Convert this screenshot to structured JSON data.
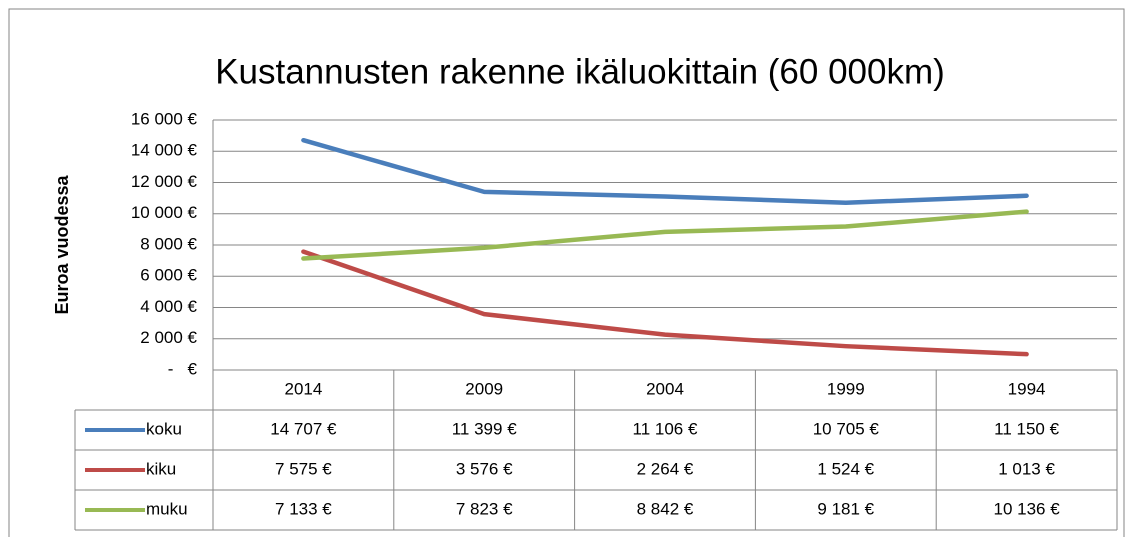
{
  "chart_data": {
    "type": "line",
    "title": "Kustannusten rakenne ikäluokittain (60 000km)",
    "y_label": "Euroa vuodessa",
    "categories": [
      "2014",
      "2009",
      "2004",
      "1999",
      "1994"
    ],
    "series": [
      {
        "name": "koku",
        "color": "#4a7ebb",
        "values": [
          14707,
          11399,
          11106,
          10705,
          11150
        ],
        "value_labels": [
          "14 707 €",
          "11 399 €",
          "11 106 €",
          "10 705 €",
          "11 150 €"
        ]
      },
      {
        "name": "kiku",
        "color": "#be4b48",
        "values": [
          7575,
          3576,
          2264,
          1524,
          1013
        ],
        "value_labels": [
          "7 575 €",
          "3 576 €",
          "2 264 €",
          "1 524 €",
          "1 013 €"
        ]
      },
      {
        "name": "muku",
        "color": "#98b954",
        "values": [
          7133,
          7823,
          8842,
          9181,
          10136
        ],
        "value_labels": [
          "7 133 €",
          "7 823 €",
          "8 842 €",
          "9 181 €",
          "10 136 €"
        ]
      }
    ],
    "ylim": [
      0,
      16000
    ],
    "yticks": [
      {
        "value": 0,
        "label": "-   €"
      },
      {
        "value": 2000,
        "label": "2 000 €"
      },
      {
        "value": 4000,
        "label": "4 000 €"
      },
      {
        "value": 6000,
        "label": "6 000 €"
      },
      {
        "value": 8000,
        "label": "8 000 €"
      },
      {
        "value": 10000,
        "label": "10 000 €"
      },
      {
        "value": 12000,
        "label": "12 000 €"
      },
      {
        "value": 14000,
        "label": "14 000 €"
      },
      {
        "value": 16000,
        "label": "16 000 €"
      }
    ],
    "grid": true
  }
}
